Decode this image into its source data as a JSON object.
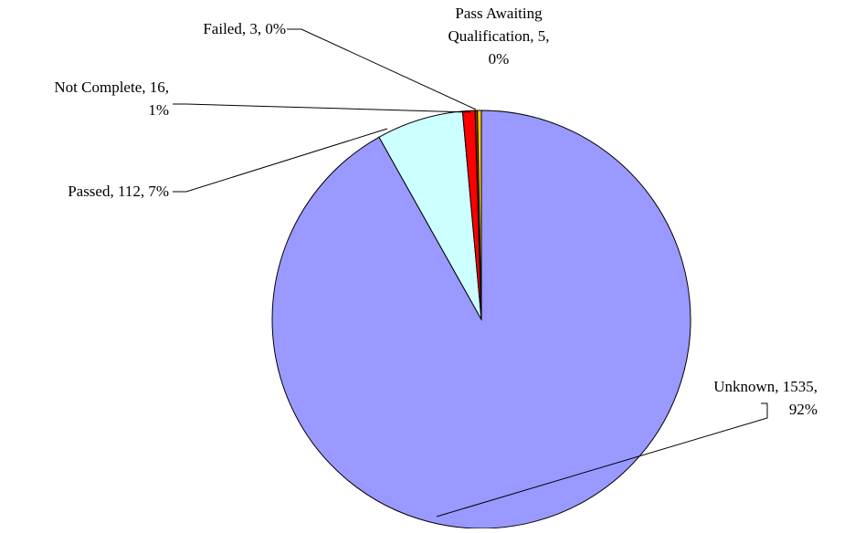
{
  "chart_data": {
    "type": "pie",
    "title": "",
    "slices": [
      {
        "label": "Unknown",
        "value": 1535,
        "percent_label": "92%",
        "color": "#9999FF",
        "label_lines": [
          "Unknown, 1535,",
          "92%"
        ]
      },
      {
        "label": "Passed",
        "value": 112,
        "percent_label": "7%",
        "color": "#CCFFFF",
        "label_lines": [
          "Passed, 112, 7%"
        ]
      },
      {
        "label": "Not Complete",
        "value": 16,
        "percent_label": "1%",
        "color": "#FF0000",
        "label_lines": [
          "Not Complete, 16,",
          "1%"
        ]
      },
      {
        "label": "Failed",
        "value": 3,
        "percent_label": "0%",
        "color": "#993300",
        "label_lines": [
          "Failed, 3, 0%"
        ]
      },
      {
        "label": "Pass Awaiting Qualification",
        "value": 5,
        "percent_label": "0%",
        "color": "#FFCC00",
        "label_lines": [
          "Pass Awaiting",
          "Qualification, 5,",
          "0%"
        ]
      }
    ],
    "slice_order": "clockwise from top",
    "legend": "none",
    "border_color": "#000000"
  }
}
